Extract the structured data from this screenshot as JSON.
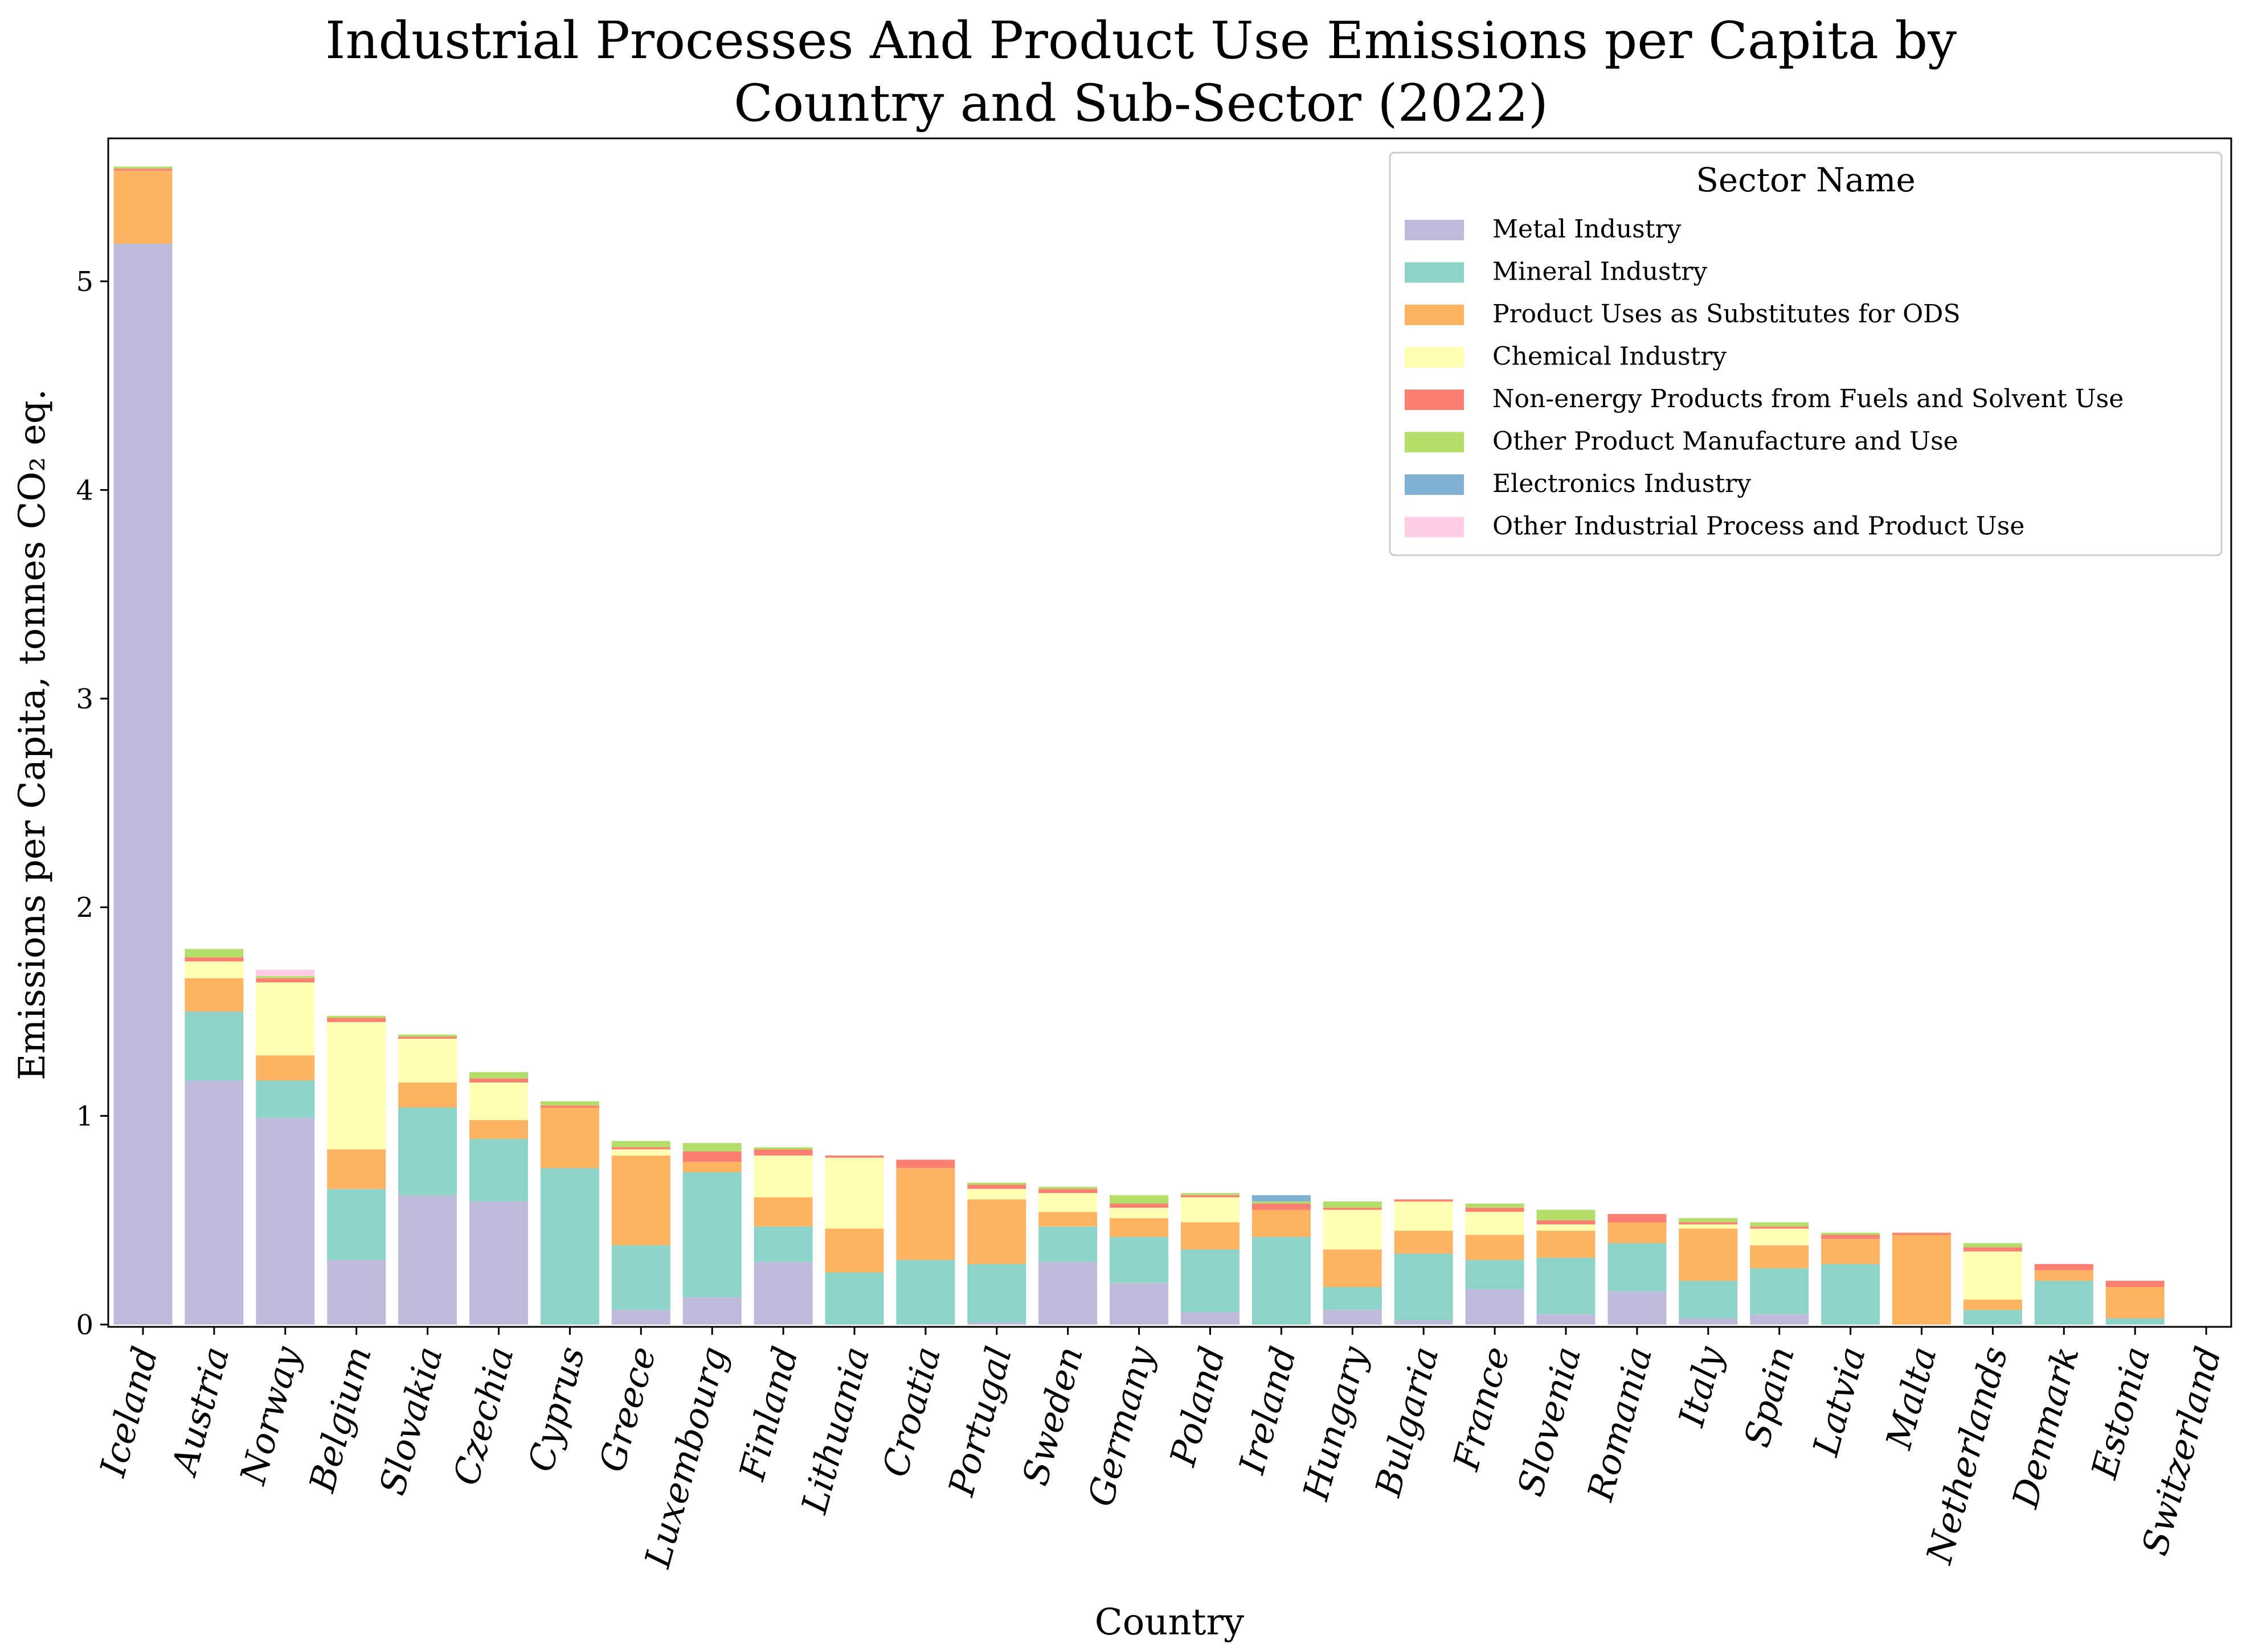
{
  "chart_data": {
    "type": "bar",
    "stacked": true,
    "title": "Industrial Processes And Product Use Emissions per Capita by Country and Sub-Sector (2022)",
    "title_lines": [
      "Industrial Processes And Product Use Emissions per Capita by",
      "Country and Sub-Sector (2022)"
    ],
    "xlabel": "Country",
    "ylabel": "Emissions per Capita, tonnes CO₂ eq.",
    "ylim": [
      0,
      5.65
    ],
    "yticks": [
      0,
      1,
      2,
      3,
      4,
      5
    ],
    "grid": false,
    "legend_title": "Sector Name",
    "legend_position": "top-right",
    "categories": [
      "Iceland",
      "Austria",
      "Norway",
      "Belgium",
      "Slovakia",
      "Czechia",
      "Cyprus",
      "Greece",
      "Luxembourg",
      "Finland",
      "Lithuania",
      "Croatia",
      "Portugal",
      "Sweden",
      "Germany",
      "Poland",
      "Ireland",
      "Hungary",
      "Bulgaria",
      "France",
      "Slovenia",
      "Romania",
      "Italy",
      "Spain",
      "Latvia",
      "Malta",
      "Netherlands",
      "Denmark",
      "Estonia",
      "Switzerland"
    ],
    "series": [
      {
        "name": "Metal Industry",
        "color": "#bebada",
        "values": [
          5.18,
          1.17,
          0.99,
          0.31,
          0.62,
          0.59,
          0.0,
          0.07,
          0.13,
          0.3,
          0.0,
          0.0,
          0.01,
          0.3,
          0.2,
          0.06,
          0.0,
          0.07,
          0.02,
          0.17,
          0.05,
          0.16,
          0.03,
          0.05,
          0.0,
          0.0,
          0.0,
          0.0,
          0.0,
          0.0
        ]
      },
      {
        "name": "Mineral Industry",
        "color": "#8dd3c7",
        "values": [
          0.0,
          0.33,
          0.18,
          0.34,
          0.42,
          0.3,
          0.75,
          0.31,
          0.6,
          0.17,
          0.25,
          0.31,
          0.28,
          0.17,
          0.22,
          0.3,
          0.42,
          0.11,
          0.32,
          0.14,
          0.27,
          0.23,
          0.18,
          0.22,
          0.29,
          0.0,
          0.07,
          0.21,
          0.03,
          0.0
        ]
      },
      {
        "name": "Product Uses as Substitutes for ODS",
        "color": "#fdb462",
        "values": [
          0.35,
          0.16,
          0.12,
          0.19,
          0.12,
          0.09,
          0.29,
          0.43,
          0.05,
          0.14,
          0.21,
          0.44,
          0.31,
          0.07,
          0.09,
          0.13,
          0.13,
          0.18,
          0.11,
          0.12,
          0.13,
          0.1,
          0.25,
          0.11,
          0.12,
          0.43,
          0.05,
          0.05,
          0.15,
          0.0
        ]
      },
      {
        "name": "Chemical Industry",
        "color": "#ffffb3",
        "values": [
          0.0,
          0.08,
          0.35,
          0.61,
          0.21,
          0.18,
          0.0,
          0.03,
          0.0,
          0.2,
          0.34,
          0.0,
          0.05,
          0.09,
          0.05,
          0.12,
          0.0,
          0.19,
          0.14,
          0.11,
          0.03,
          0.0,
          0.02,
          0.08,
          0.0,
          0.0,
          0.23,
          0.0,
          0.0,
          0.0
        ]
      },
      {
        "name": "Non-energy Products from Fuels and Solvent Use",
        "color": "#fb8072",
        "values": [
          0.01,
          0.02,
          0.02,
          0.02,
          0.01,
          0.02,
          0.01,
          0.01,
          0.05,
          0.03,
          0.01,
          0.04,
          0.02,
          0.02,
          0.02,
          0.01,
          0.03,
          0.01,
          0.01,
          0.02,
          0.02,
          0.04,
          0.01,
          0.01,
          0.02,
          0.01,
          0.02,
          0.03,
          0.03,
          0.0
        ]
      },
      {
        "name": "Other Product Manufacture and Use",
        "color": "#b3de69",
        "values": [
          0.01,
          0.04,
          0.01,
          0.01,
          0.01,
          0.03,
          0.02,
          0.03,
          0.04,
          0.01,
          0.0,
          0.0,
          0.01,
          0.01,
          0.04,
          0.01,
          0.01,
          0.03,
          0.0,
          0.02,
          0.05,
          0.0,
          0.02,
          0.02,
          0.01,
          0.0,
          0.02,
          0.0,
          0.0,
          0.0
        ]
      },
      {
        "name": "Electronics Industry",
        "color": "#80b1d3",
        "values": [
          0.0,
          0.0,
          0.0,
          0.0,
          0.0,
          0.0,
          0.0,
          0.0,
          0.0,
          0.0,
          0.0,
          0.0,
          0.0,
          0.0,
          0.0,
          0.0,
          0.03,
          0.0,
          0.0,
          0.0,
          0.0,
          0.0,
          0.0,
          0.0,
          0.0,
          0.0,
          0.0,
          0.0,
          0.0,
          0.0
        ]
      },
      {
        "name": "Other Industrial Process and Product Use",
        "color": "#fccde5",
        "values": [
          0.0,
          0.0,
          0.03,
          0.0,
          0.0,
          0.0,
          0.0,
          0.0,
          0.0,
          0.0,
          0.0,
          0.0,
          0.0,
          0.0,
          0.0,
          0.0,
          0.0,
          0.0,
          0.0,
          0.0,
          0.0,
          0.0,
          0.0,
          0.0,
          0.0,
          0.0,
          0.0,
          0.0,
          0.0,
          0.0
        ]
      }
    ]
  }
}
